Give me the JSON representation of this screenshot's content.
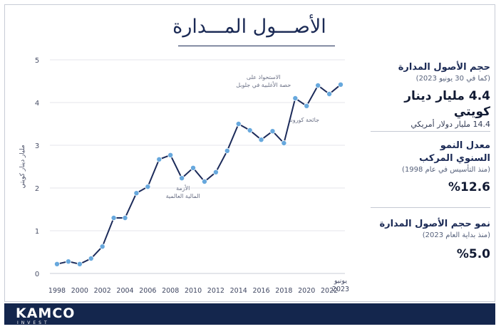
{
  "title": "الأصـــول المـــدارة",
  "chart_data": {
    "type": "line",
    "ylabel": "مليار دينار كويتي",
    "ylim": [
      0,
      5
    ],
    "yticks": [
      "0",
      "1",
      "2",
      "3",
      "4",
      "5"
    ],
    "x_tick_labels": [
      "1998",
      "2000",
      "2002",
      "2004",
      "2006",
      "2008",
      "2010",
      "2012",
      "2014",
      "2016",
      "2018",
      "2020",
      "2022",
      "يونيو\n2023"
    ],
    "x": [
      1998,
      1999,
      2000,
      2001,
      2002,
      2003,
      2004,
      2005,
      2006,
      2007,
      2008,
      2009,
      2010,
      2011,
      2012,
      2013,
      2014,
      2015,
      2016,
      2017,
      2018,
      2019,
      2020,
      2021,
      2022,
      2023
    ],
    "values": [
      0.22,
      0.28,
      0.22,
      0.35,
      0.63,
      1.3,
      1.3,
      1.88,
      2.03,
      2.67,
      2.77,
      2.23,
      2.47,
      2.15,
      2.37,
      2.87,
      3.5,
      3.35,
      3.13,
      3.33,
      3.05,
      4.1,
      3.92,
      4.4,
      4.2,
      4.42
    ],
    "annotations": [
      {
        "text": "الأزمة المالية العالمية",
        "year": 2009.2
      },
      {
        "text": "جائحة كورونا",
        "year": 2020
      },
      {
        "text": "الاستحواذ على حصة الأغلبية في جلوبل",
        "year": 2016
      }
    ],
    "colors": {
      "line": "#1c2b5a",
      "marker": "#67a8dd"
    }
  },
  "side": {
    "aum": {
      "label": "حجم الأصول المدارة",
      "sub": "(كما في 30 يونيو 2023)",
      "value": "4.4 مليار دينار كويتي",
      "usd": "14.4 مليار دولار أمريكي"
    },
    "cagr": {
      "label1": "معدل النمو",
      "label2": "السنوي المركب",
      "sub": "(منذ التأسيس في عام 1998)",
      "value": "%12.6"
    },
    "growth": {
      "label": "نمو حجم الأصول المدارة",
      "sub": "(منذ بداية العام 2023)",
      "value": "%5.0"
    }
  },
  "footer": {
    "logo": "KAMCO",
    "logo_sub": "INVEST",
    "color": "#14264d"
  }
}
